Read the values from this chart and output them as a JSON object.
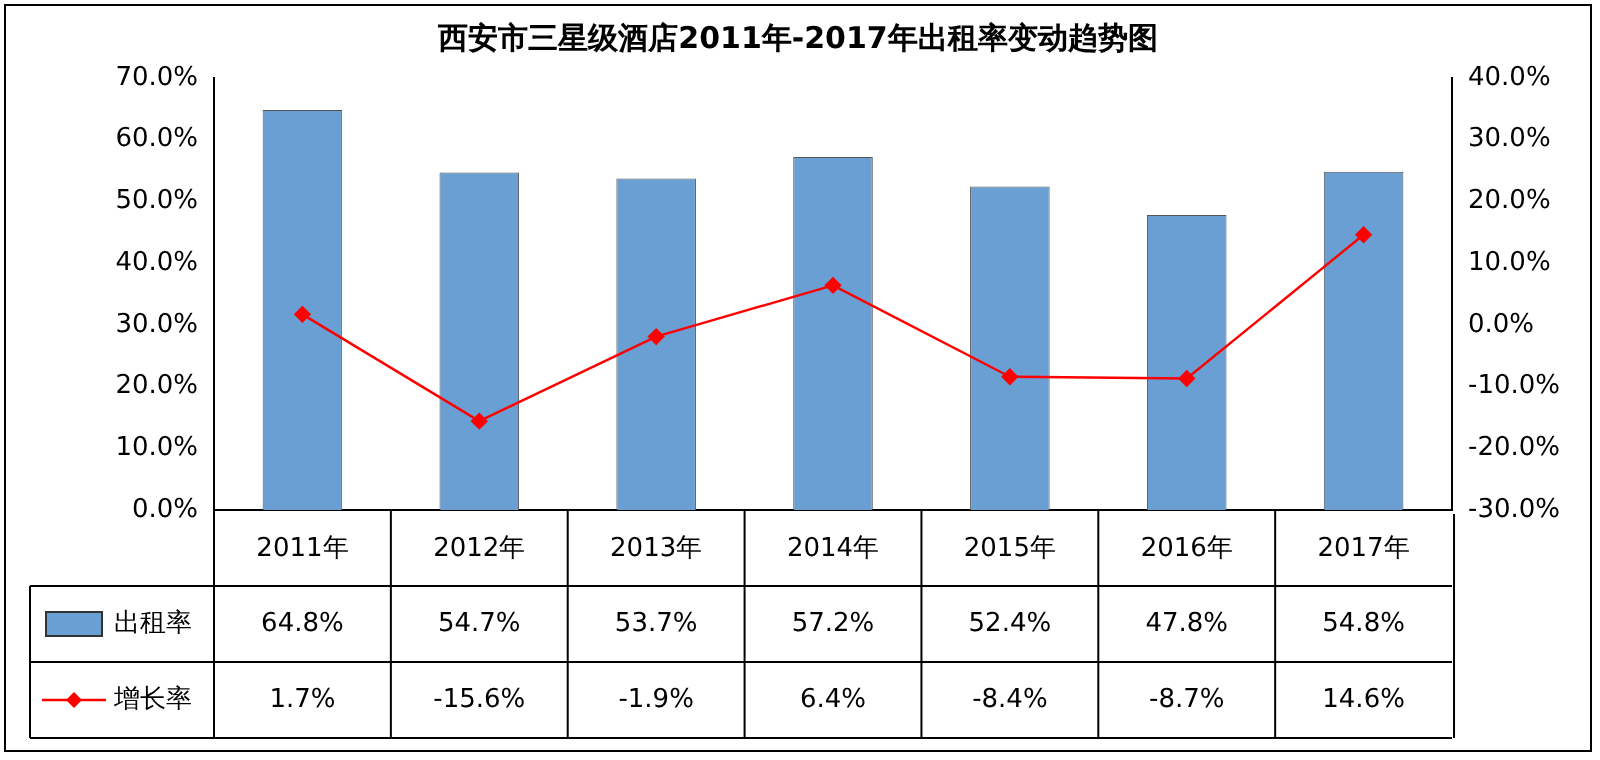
{
  "chart_data": {
    "type": "bar",
    "title": "西安市三星级酒店2011年-2017年出租率变动趋势图",
    "categories": [
      "2011年",
      "2012年",
      "2013年",
      "2014年",
      "2015年",
      "2016年",
      "2017年"
    ],
    "series": [
      {
        "name": "出租率",
        "color": "#6a9fd4",
        "values": [
          64.8,
          54.7,
          53.7,
          57.2,
          52.4,
          47.8,
          54.8
        ],
        "value_labels": [
          "64.8%",
          "54.7%",
          "53.7%",
          "57.2%",
          "52.4%",
          "47.8%",
          "54.8%"
        ]
      },
      {
        "name": "增长率",
        "type": "line",
        "axis": "y2",
        "color": "#ff0000",
        "marker": "diamond",
        "values": [
          1.7,
          -15.6,
          -1.9,
          6.4,
          -8.4,
          -8.7,
          14.6
        ],
        "value_labels": [
          "1.7%",
          "-15.6%",
          "-1.9%",
          "6.4%",
          "-8.4%",
          "-8.7%",
          "14.6%"
        ]
      }
    ],
    "ylim": [
      0,
      70
    ],
    "yticks": [
      {
        "value": 0,
        "label": "0.0%"
      },
      {
        "value": 10,
        "label": "10.0%"
      },
      {
        "value": 20,
        "label": "20.0%"
      },
      {
        "value": 30,
        "label": "30.0%"
      },
      {
        "value": 40,
        "label": "40.0%"
      },
      {
        "value": 50,
        "label": "50.0%"
      },
      {
        "value": 60,
        "label": "60.0%"
      },
      {
        "value": 70,
        "label": "70.0%"
      }
    ],
    "y2lim": [
      -30,
      40
    ],
    "y2ticks": [
      {
        "value": -30,
        "label": "-30.0%"
      },
      {
        "value": -20,
        "label": "-20.0%"
      },
      {
        "value": -10,
        "label": "-10.0%"
      },
      {
        "value": 0,
        "label": "0.0%"
      },
      {
        "value": 10,
        "label": "10.0%"
      },
      {
        "value": 20,
        "label": "20.0%"
      },
      {
        "value": 30,
        "label": "30.0%"
      },
      {
        "value": 40,
        "label": "40.0%"
      }
    ],
    "legend": "bottom left"
  }
}
